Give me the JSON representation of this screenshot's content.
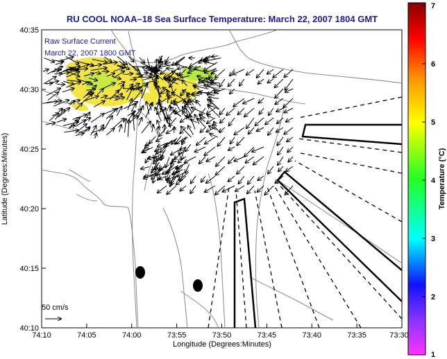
{
  "title": "RU COOL  NOAA–18  Sea Surface Temperature:  March 22, 2007 1804 GMT",
  "overlay": {
    "line1": "Raw Surface Current",
    "line2": "March 22, 2007 1800 GMT"
  },
  "scale": {
    "label": "50 cm/s"
  },
  "x_axis": {
    "label": "Longitude (Degrees:Minutes)",
    "ticks": [
      "74:10",
      "74:05",
      "74:00",
      "73:55",
      "73:50",
      "73:45",
      "73:40",
      "73:35",
      "73:30"
    ]
  },
  "y_axis": {
    "label": "Latitude (Degrees:Minutes)",
    "ticks": [
      "40:35",
      "40:30",
      "40:25",
      "40:20",
      "40:15",
      "40:10"
    ]
  },
  "colorbar": {
    "label": "Temperature (°C)",
    "min": 1,
    "max": 7,
    "ticks": [
      "1",
      "2",
      "3",
      "4",
      "5",
      "6",
      "7"
    ]
  }
}
